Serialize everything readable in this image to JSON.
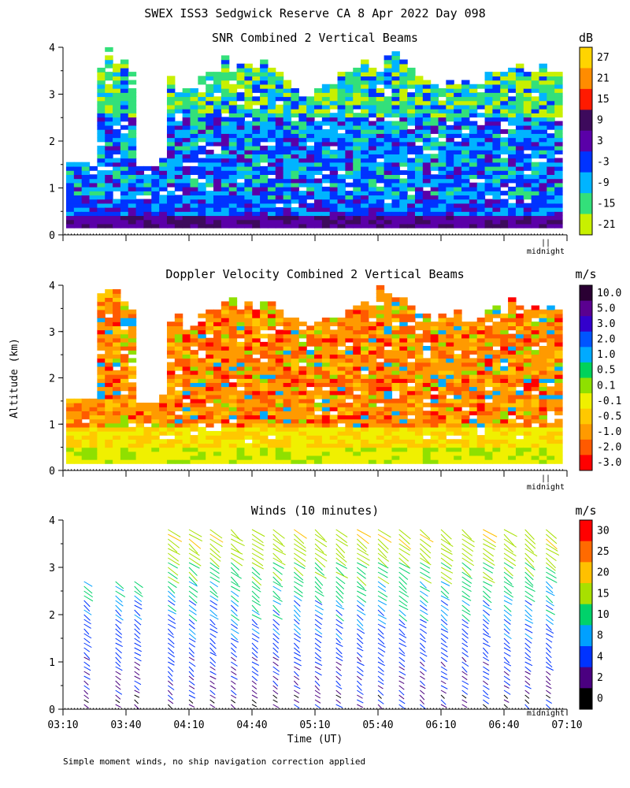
{
  "figure": {
    "title": "SWEX ISS3 Sedgwick Reserve CA   8 Apr 2022 Day 098",
    "ylabel": "Altitude (km)",
    "xlabel": "Time (UT)",
    "footnote": "Simple moment winds, no ship navigation correction applied",
    "midnight_label": "midnight",
    "midnight_marker": "||"
  },
  "chart_data": [
    {
      "type": "heatmap",
      "title": "SNR Combined 2 Vertical Beams",
      "units": "dB",
      "x_range": [
        "03:10",
        "07:10"
      ],
      "ylim": [
        0,
        4
      ],
      "y_ticks": [
        0,
        1,
        2,
        3,
        4
      ],
      "colorbar": {
        "labels": [
          "27",
          "21",
          "15",
          "9",
          "3",
          "-3",
          "-9",
          "-15",
          "-21"
        ],
        "colors": [
          "#ffd400",
          "#ff8c00",
          "#ff1a00",
          "#3d0a5c",
          "#5a00a8",
          "#0033ff",
          "#00b4ff",
          "#33e07a",
          "#c8f000"
        ]
      },
      "fields": {
        "low_layer": {
          "alt_km": [
            0.1,
            0.6
          ],
          "dominant_db": -3
        },
        "mid_layer": {
          "alt_km": [
            0.6,
            2.6
          ],
          "dominant_db": -6
        },
        "upper_layer": {
          "alt_km": [
            2.6,
            4.0
          ],
          "dominant_db": -15
        },
        "data_gaps": [
          {
            "time": [
              "03:10",
              "03:18"
            ],
            "alt_km": [
              1.4,
              4.0
            ]
          },
          {
            "time": [
              "03:30",
              "03:37"
            ],
            "alt_km": [
              1.3,
              4.0
            ]
          },
          {
            "time": [
              "03:40",
              "03:47"
            ],
            "alt_km": [
              1.4,
              4.0
            ]
          }
        ]
      }
    },
    {
      "type": "heatmap",
      "title": "Doppler Velocity Combined 2 Vertical Beams",
      "units": "m/s",
      "x_range": [
        "03:10",
        "07:10"
      ],
      "ylim": [
        0,
        4
      ],
      "y_ticks": [
        0,
        1,
        2,
        3,
        4
      ],
      "colorbar": {
        "labels": [
          "10.0",
          "5.0",
          "3.0",
          "2.0",
          "1.0",
          "0.5",
          "0.1",
          "-0.1",
          "-0.5",
          "-1.0",
          "-2.0",
          "-3.0"
        ],
        "colors": [
          "#2a0033",
          "#5a0090",
          "#3300cc",
          "#0055ff",
          "#00aaff",
          "#00d25a",
          "#8fe000",
          "#f0f000",
          "#ffc800",
          "#ff9a00",
          "#ff5a00",
          "#ff0000"
        ]
      },
      "fields": {
        "near_surface": {
          "alt_km": [
            0.1,
            0.6
          ],
          "dominant_ms": -0.1
        },
        "main_layer": {
          "alt_km": [
            0.6,
            3.5
          ],
          "dominant_ms": -1.0
        }
      }
    },
    {
      "type": "scatter",
      "title": "Winds (10 minutes)",
      "units": "m/s",
      "x_ticks": [
        "03:10",
        "03:40",
        "04:10",
        "04:40",
        "05:10",
        "05:40",
        "06:10",
        "06:40",
        "07:10"
      ],
      "ylim": [
        0,
        4
      ],
      "y_ticks": [
        0,
        1,
        2,
        3,
        4
      ],
      "colorbar": {
        "labels": [
          "30",
          "25",
          "20",
          "15",
          "10",
          "8",
          "4",
          "2",
          "0"
        ],
        "colors": [
          "#ff0000",
          "#ff6a00",
          "#ffc000",
          "#a8e000",
          "#00d26a",
          "#00a0ff",
          "#0033ff",
          "#4a0080",
          "#000000"
        ]
      },
      "profile_times": [
        "03:20",
        "03:35",
        "03:44",
        "04:00",
        "04:10",
        "04:20",
        "04:30",
        "04:40",
        "04:50",
        "05:00",
        "05:10",
        "05:20",
        "05:30",
        "05:40",
        "05:50",
        "06:00",
        "06:10",
        "06:20",
        "06:30",
        "06:40",
        "06:50",
        "07:00"
      ],
      "wind_speed_by_alt": {
        "alt_km": [
          0.2,
          0.6,
          1.0,
          1.4,
          1.8,
          2.2,
          2.6,
          3.0,
          3.4,
          3.8
        ],
        "speed_ms": [
          3,
          4,
          5,
          6,
          7,
          9,
          11,
          14,
          17,
          19
        ]
      }
    }
  ]
}
